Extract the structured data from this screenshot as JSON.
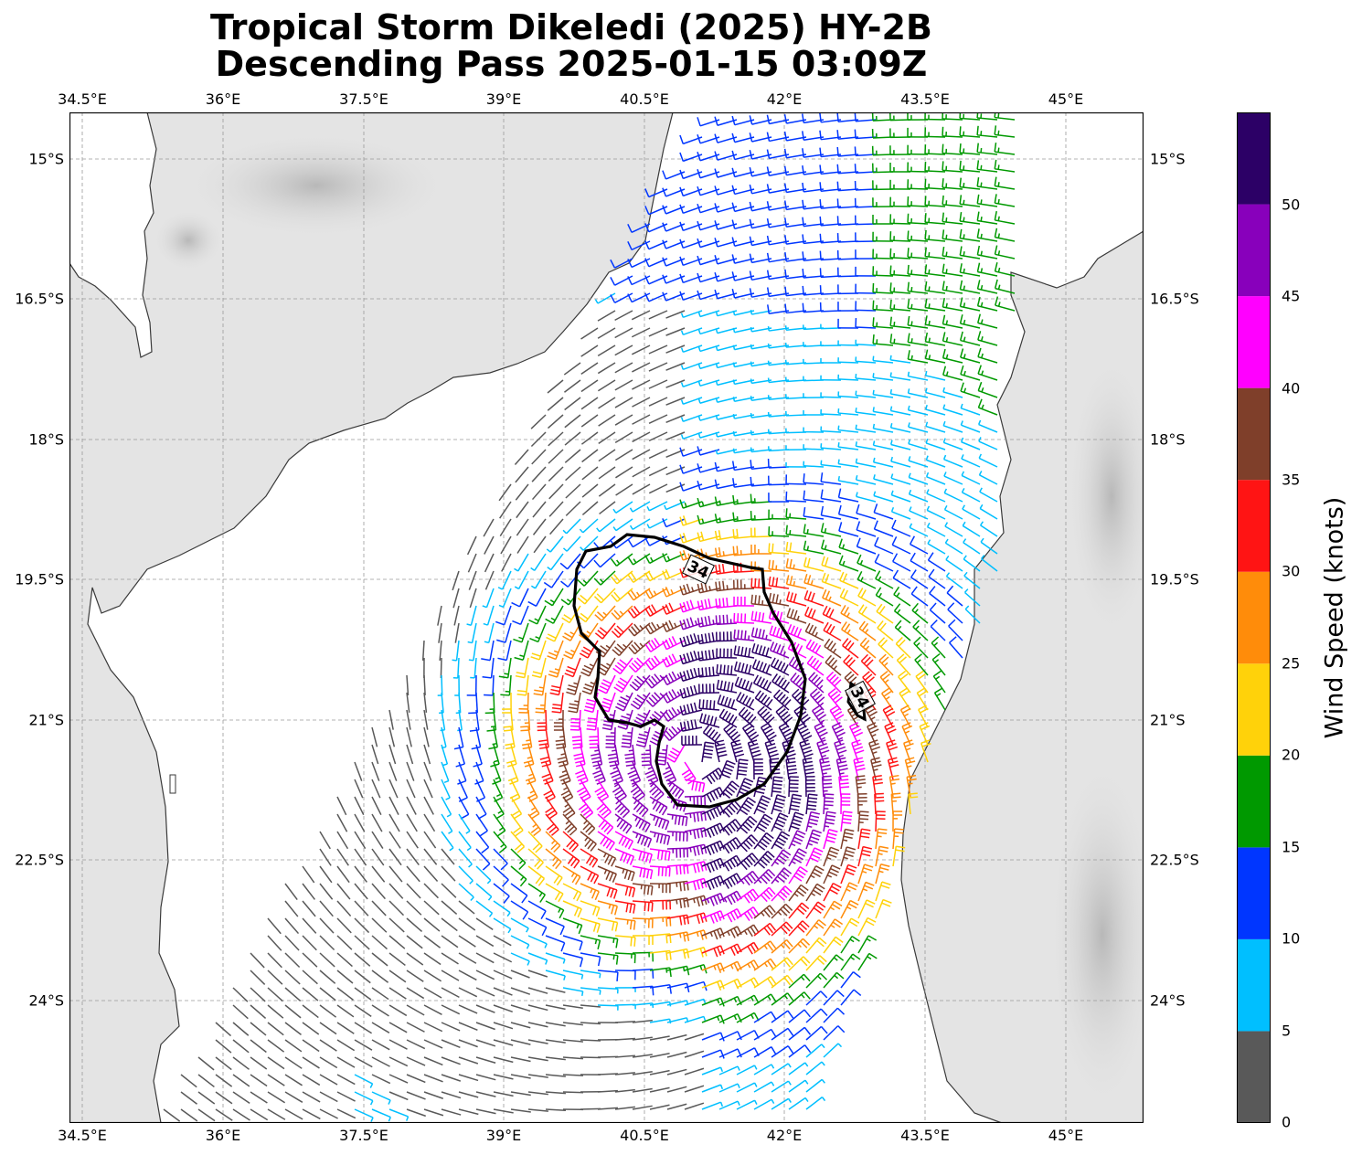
{
  "title": {
    "line1": "Tropical Storm Dikeledi (2025) HY-2B",
    "line2": "Descending Pass 2025-01-15 03:09Z"
  },
  "map": {
    "lon_ticks": [
      "34.5°E",
      "36°E",
      "37.5°E",
      "39°E",
      "40.5°E",
      "42°E",
      "43.5°E",
      "45°E"
    ],
    "lat_ticks": [
      "15°S",
      "16.5°S",
      "18°S",
      "19.5°S",
      "21°S",
      "22.5°S",
      "24°S"
    ],
    "extent": {
      "lon_min": 34.35,
      "lon_max": 45.82,
      "lat_north": 14.5,
      "lat_south": 25.28
    },
    "land_color": "#e6e6e6",
    "ocean_color": "#ffffff",
    "coast_color": "#3a3a3a",
    "storm_center": {
      "lon": 41.05,
      "lat": 21.4
    },
    "contour_label": "34",
    "contour_labels": [
      "34",
      "34"
    ]
  },
  "colorbar": {
    "label": "Wind Speed (knots)",
    "ticks": [
      "0",
      "5",
      "10",
      "15",
      "20",
      "25",
      "30",
      "35",
      "40",
      "45",
      "50"
    ],
    "bins": [
      {
        "min": 0,
        "max": 5,
        "color": "#595959"
      },
      {
        "min": 5,
        "max": 10,
        "color": "#00bfff"
      },
      {
        "min": 10,
        "max": 15,
        "color": "#0036ff"
      },
      {
        "min": 15,
        "max": 20,
        "color": "#009900"
      },
      {
        "min": 20,
        "max": 25,
        "color": "#ffd20a"
      },
      {
        "min": 25,
        "max": 30,
        "color": "#ff8c0a"
      },
      {
        "min": 30,
        "max": 35,
        "color": "#ff1414"
      },
      {
        "min": 35,
        "max": 40,
        "color": "#7f3f2a"
      },
      {
        "min": 40,
        "max": 45,
        "color": "#ff00ff"
      },
      {
        "min": 45,
        "max": 50,
        "color": "#8800bb"
      },
      {
        "min": 50,
        "max": 55,
        "color": "#2c0066"
      }
    ]
  }
}
